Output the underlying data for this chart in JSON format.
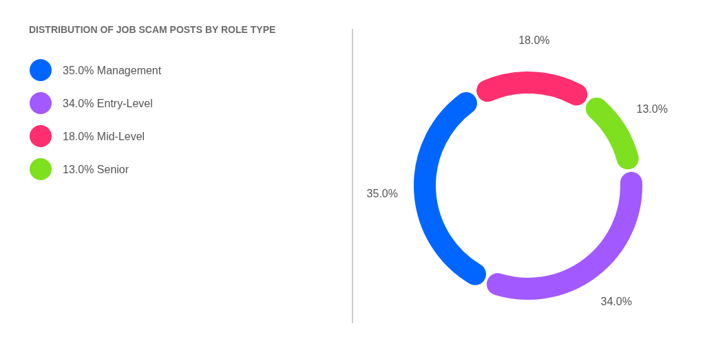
{
  "chart_data": {
    "type": "donut",
    "title": "DISTRIBUTION OF JOB SCAM POSTS BY ROLE TYPE",
    "categories": [
      "Mid-Level",
      "Senior",
      "Entry-Level",
      "Management"
    ],
    "values": [
      18,
      13,
      34,
      35
    ],
    "value_labels": [
      "18.0%",
      "13.0%",
      "34.0%",
      "35.0%"
    ],
    "colors": [
      "#ff2e6e",
      "#7ee01f",
      "#a259ff",
      "#0066ff"
    ],
    "legend": "left"
  }
}
